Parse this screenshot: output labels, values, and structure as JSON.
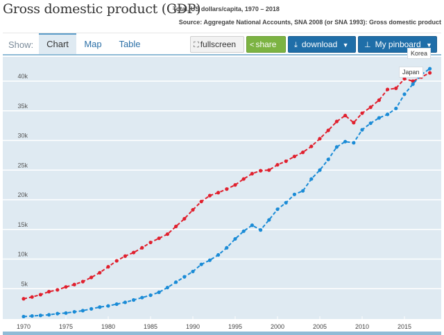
{
  "header": {
    "title": "Gross domestic product (GDP)",
    "subtitle": "Total, US dollars/capita, 1970 – 2018",
    "source": "Source: Aggregate National Accounts, SNA 2008 (or SNA 1993): Gross domestic product"
  },
  "tabs": {
    "show_label": "Show:",
    "items": [
      {
        "label": "Chart",
        "active": true
      },
      {
        "label": "Map",
        "active": false
      },
      {
        "label": "Table",
        "active": false
      }
    ]
  },
  "toolbar": {
    "fullscreen_label": "fullscreen",
    "fullscreen_icon": "expand-icon",
    "share_label": "share",
    "share_icon": "share-icon",
    "download_label": "download",
    "download_icon": "download-icon",
    "pinboard_label": "My pinboard",
    "pinboard_icon": "pin-icon"
  },
  "tooltips": {
    "korea": "Korea",
    "japan": "Japan"
  },
  "colors": {
    "japan": "#e0202e",
    "korea": "#1a8bd6",
    "plot_bg": "#dfeaf2",
    "accent": "#1f6ea8",
    "share": "#7cb342"
  },
  "chart_data": {
    "type": "line",
    "title": "Gross domestic product (GDP)",
    "subtitle": "Total, US dollars/capita, 1970 – 2018",
    "xlabel": "",
    "ylabel": "",
    "ylim": [
      0,
      43000
    ],
    "xlim": [
      1970,
      2018
    ],
    "yticks": [
      5000,
      10000,
      15000,
      20000,
      25000,
      30000,
      35000,
      40000
    ],
    "ytick_labels": [
      "5k",
      "10k",
      "15k",
      "20k",
      "25k",
      "30k",
      "35k",
      "40k"
    ],
    "xticks": [
      1970,
      1975,
      1980,
      1985,
      1990,
      1995,
      2000,
      2005,
      2010,
      2015
    ],
    "xtick_labels": [
      "1970",
      "1975",
      "1980",
      "1985",
      "1990",
      "1995",
      "2000",
      "2005",
      "2010",
      "2015"
    ],
    "grid": true,
    "legend": "none (tooltip labels at end of series, top-right)",
    "x": [
      1970,
      1971,
      1972,
      1973,
      1974,
      1975,
      1976,
      1977,
      1978,
      1979,
      1980,
      1981,
      1982,
      1983,
      1984,
      1985,
      1986,
      1987,
      1988,
      1989,
      1990,
      1991,
      1992,
      1993,
      1994,
      1995,
      1996,
      1997,
      1998,
      1999,
      2000,
      2001,
      2002,
      2003,
      2004,
      2005,
      2006,
      2007,
      2008,
      2009,
      2010,
      2011,
      2012,
      2013,
      2014,
      2015,
      2016,
      2017,
      2018
    ],
    "series": [
      {
        "name": "Japan",
        "color": "#e0202e",
        "values": [
          3300,
          3600,
          4000,
          4500,
          4800,
          5300,
          5700,
          6200,
          6900,
          7700,
          8700,
          9700,
          10500,
          11100,
          11900,
          12800,
          13500,
          14200,
          15500,
          16800,
          18300,
          19700,
          20700,
          21200,
          21800,
          22500,
          23500,
          24400,
          24900,
          25000,
          25900,
          26500,
          27300,
          28000,
          29000,
          30300,
          31700,
          33200,
          34200,
          33000,
          34600,
          35600,
          36800,
          38600,
          38800,
          40400,
          40000,
          40700,
          41400
        ]
      },
      {
        "name": "Korea",
        "color": "#1a8bd6",
        "values": [
          300,
          400,
          500,
          600,
          800,
          900,
          1100,
          1300,
          1600,
          1900,
          2100,
          2400,
          2700,
          3100,
          3500,
          3900,
          4400,
          5200,
          6100,
          7000,
          7900,
          9100,
          9800,
          10700,
          11900,
          13400,
          14700,
          15700,
          14900,
          16600,
          18400,
          19500,
          20900,
          21500,
          23500,
          25000,
          26800,
          28900,
          29800,
          29600,
          31800,
          32900,
          33800,
          34400,
          35400,
          37800,
          39500,
          41100,
          42100
        ]
      }
    ]
  }
}
